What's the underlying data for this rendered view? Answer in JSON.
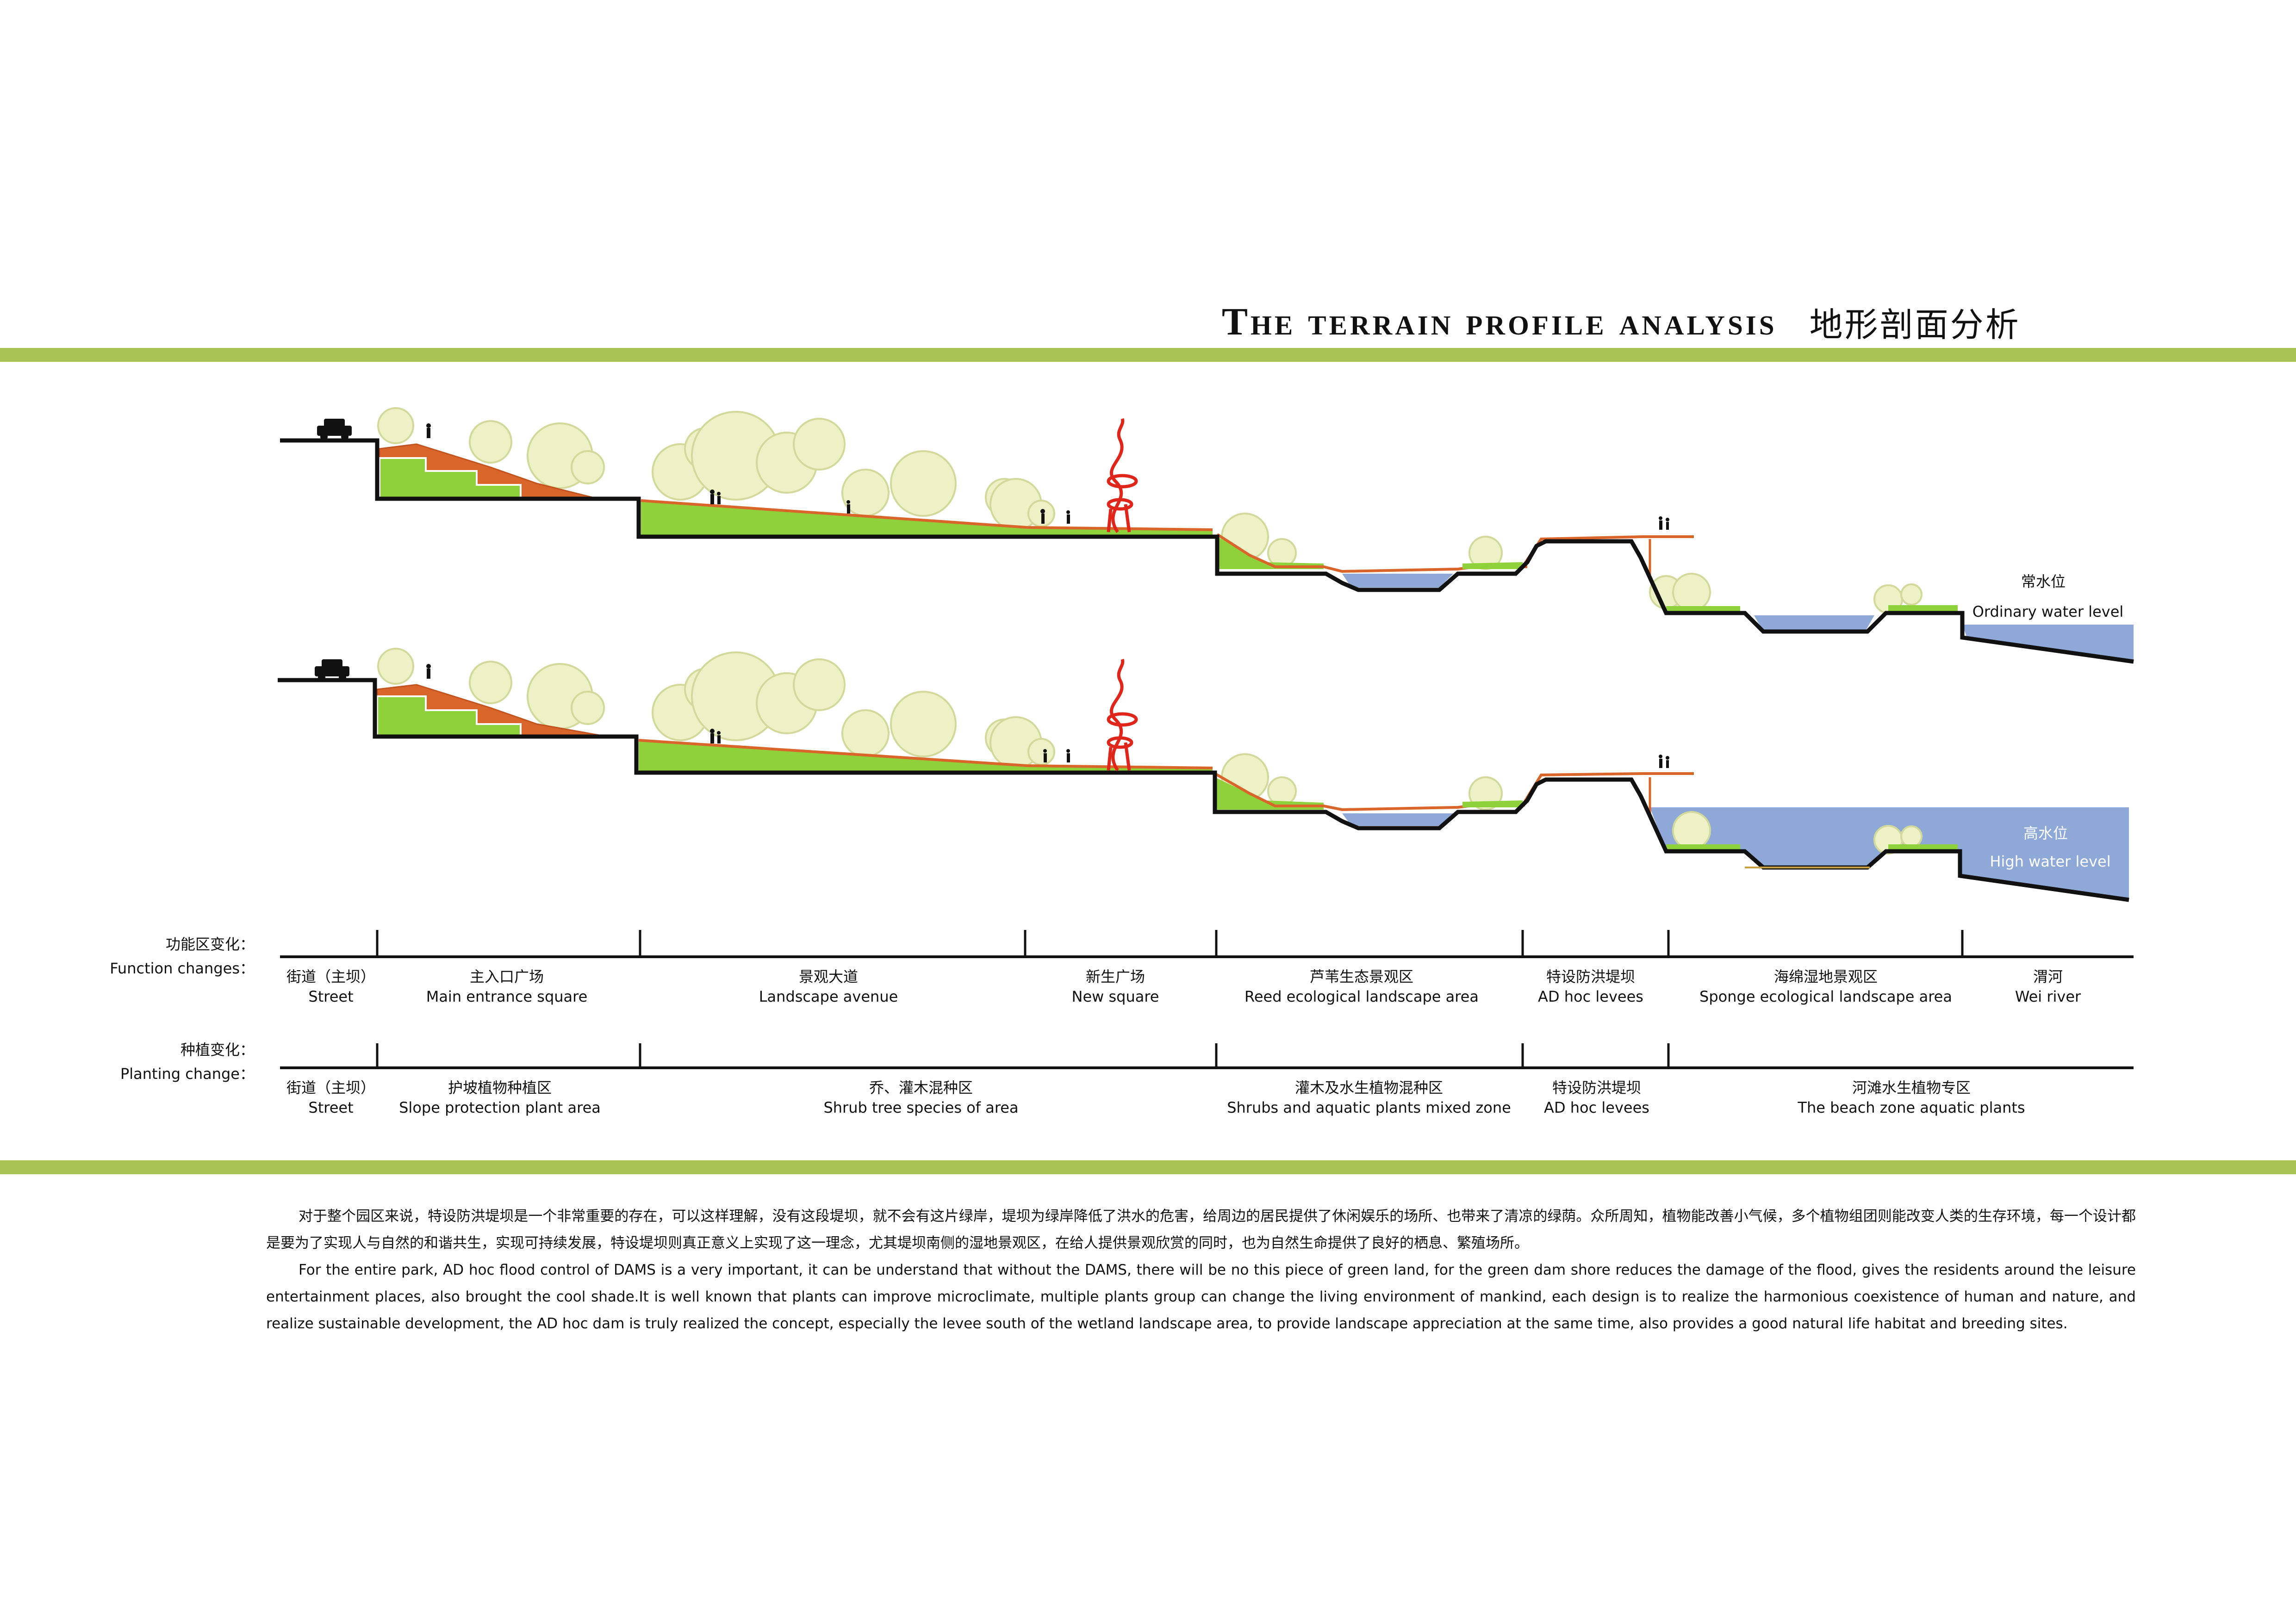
{
  "title": {
    "en": "The terrain profile analysis",
    "cn": "地形剖面分析"
  },
  "water_labels": {
    "ordinary_cn": "常水位",
    "ordinary_en": "Ordinary water level",
    "high_cn": "高水位",
    "high_en": "High water level"
  },
  "function_changes": {
    "header_cn": "功能区变化：",
    "header_en": "Function changes：",
    "zones": [
      {
        "cn": "街道（主坝）",
        "en": "Street"
      },
      {
        "cn": "主入口广场",
        "en": "Main entrance square"
      },
      {
        "cn": "景观大道",
        "en": "Landscape avenue"
      },
      {
        "cn": "新生广场",
        "en": "New square"
      },
      {
        "cn": "芦苇生态景观区",
        "en": "Reed ecological landscape area"
      },
      {
        "cn": "特设防洪堤坝",
        "en": "AD hoc levees"
      },
      {
        "cn": "海绵湿地景观区",
        "en": "Sponge ecological landscape area"
      },
      {
        "cn": "渭河",
        "en": "Wei river"
      }
    ]
  },
  "planting_change": {
    "header_cn": "种植变化：",
    "header_en": "Planting change：",
    "zones": [
      {
        "cn": "街道（主坝）",
        "en": "Street"
      },
      {
        "cn": "护坡植物种植区",
        "en": "Slope protection plant area"
      },
      {
        "cn": "乔、灌木混种区",
        "en": "Shrub tree species of area"
      },
      {
        "cn": "灌木及水生植物混种区",
        "en": "Shrubs and aquatic plants mixed zone"
      },
      {
        "cn": "特设防洪堤坝",
        "en": "AD hoc levees"
      },
      {
        "cn": "河滩水生植物专区",
        "en": "The beach zone aquatic plants"
      }
    ]
  },
  "description": {
    "cn": "对于整个园区来说，特设防洪堤坝是一个非常重要的存在，可以这样理解，没有这段堤坝，就不会有这片绿岸，堤坝为绿岸降低了洪水的危害，给周边的居民提供了休闲娱乐的场所、也带来了清凉的绿荫。众所周知，植物能改善小气候，多个植物组团则能改变人类的生存环境，每一个设计都是要为了实现人与自然的和谐共生，实现可持续发展，特设堤坝则真正意义上实现了这一理念，尤其堤坝南侧的湿地景观区，在给人提供景观欣赏的同时，也为自然生命提供了良好的栖息、繁殖场所。",
    "en": "For the entire park, AD hoc flood control of DAMS is a very important, it can be understand that without the DAMS, there will be no this piece of green land, for the green dam shore reduces the damage of the flood, gives the residents around the leisure entertainment places, also brought the cool shade.It is well known that plants can improve microclimate, multiple plants group can change the living environment of mankind, each design is to realize the harmonious coexistence of human and nature, and realize sustainable development, the AD hoc dam is truly realized the concept, especially the levee south of the wetland landscape area, to provide landscape appreciation at the same time, also provides a good natural life habitat and breeding sites."
  },
  "colors": {
    "band": "#a9c254",
    "grass": "#8fd13a",
    "soil": "#d9652a",
    "water": "#8ea8d8",
    "tree": "#eef0c6",
    "tree_stroke": "#d8dd9a",
    "sculpture": "#e0251b"
  }
}
